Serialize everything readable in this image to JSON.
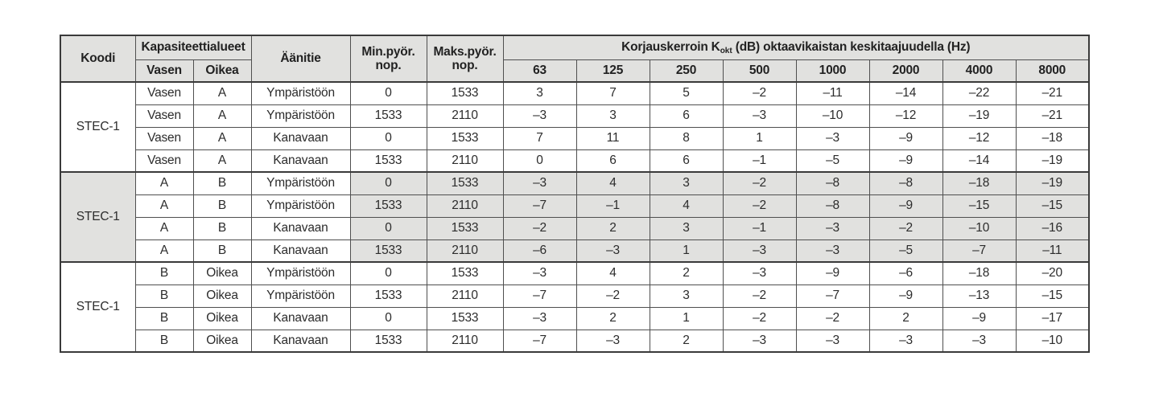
{
  "colors": {
    "header_and_shaded_row_bg": "#e1e1df",
    "grid_border": "#4f4f4f",
    "outer_border": "#3a3a3a",
    "text": "#2c2c2c",
    "page_bg": "#ffffff"
  },
  "table": {
    "header": {
      "koodi": "Koodi",
      "kapasiteettialueet": "Kapasiteettialueet",
      "vasen": "Vasen",
      "oikea": "Oikea",
      "aanitie": "Äänitie",
      "min_line1": "Min.pyör.",
      "min_line2": "nop.",
      "maks_line1": "Maks.pyör.",
      "maks_line2": "nop.",
      "korjaus_prefix": "Korjauskerroin K",
      "korjaus_sub": "okt",
      "korjaus_suffix": " (dB) oktaavikaistan keskitaajuudella (Hz)",
      "frequencies": [
        "63",
        "125",
        "250",
        "500",
        "1000",
        "2000",
        "4000",
        "8000"
      ]
    },
    "groups": [
      {
        "koodi": "STEC-1",
        "shaded": false,
        "rows": [
          {
            "vasen": "Vasen",
            "oikea": "A",
            "aanitie": "Ympäristöön",
            "min": "0",
            "maks": "1533",
            "values": [
              "3",
              "7",
              "5",
              "–2",
              "–11",
              "–14",
              "–22",
              "–21"
            ]
          },
          {
            "vasen": "Vasen",
            "oikea": "A",
            "aanitie": "Ympäristöön",
            "min": "1533",
            "maks": "2110",
            "values": [
              "–3",
              "3",
              "6",
              "–3",
              "–10",
              "–12",
              "–19",
              "–21"
            ]
          },
          {
            "vasen": "Vasen",
            "oikea": "A",
            "aanitie": "Kanavaan",
            "min": "0",
            "maks": "1533",
            "values": [
              "7",
              "11",
              "8",
              "1",
              "–3",
              "–9",
              "–12",
              "–18"
            ]
          },
          {
            "vasen": "Vasen",
            "oikea": "A",
            "aanitie": "Kanavaan",
            "min": "1533",
            "maks": "2110",
            "values": [
              "0",
              "6",
              "6",
              "–1",
              "–5",
              "–9",
              "–14",
              "–19"
            ]
          }
        ]
      },
      {
        "koodi": "STEC-1",
        "shaded": true,
        "rows": [
          {
            "vasen": "A",
            "oikea": "B",
            "aanitie": "Ympäristöön",
            "min": "0",
            "maks": "1533",
            "values": [
              "–3",
              "4",
              "3",
              "–2",
              "–8",
              "–8",
              "–18",
              "–19"
            ]
          },
          {
            "vasen": "A",
            "oikea": "B",
            "aanitie": "Ympäristöön",
            "min": "1533",
            "maks": "2110",
            "values": [
              "–7",
              "–1",
              "4",
              "–2",
              "–8",
              "–9",
              "–15",
              "–15"
            ]
          },
          {
            "vasen": "A",
            "oikea": "B",
            "aanitie": "Kanavaan",
            "min": "0",
            "maks": "1533",
            "values": [
              "–2",
              "2",
              "3",
              "–1",
              "–3",
              "–2",
              "–10",
              "–16"
            ]
          },
          {
            "vasen": "A",
            "oikea": "B",
            "aanitie": "Kanavaan",
            "min": "1533",
            "maks": "2110",
            "values": [
              "–6",
              "–3",
              "1",
              "–3",
              "–3",
              "–5",
              "–7",
              "–11"
            ]
          }
        ]
      },
      {
        "koodi": "STEC-1",
        "shaded": false,
        "rows": [
          {
            "vasen": "B",
            "oikea": "Oikea",
            "aanitie": "Ympäristöön",
            "min": "0",
            "maks": "1533",
            "values": [
              "–3",
              "4",
              "2",
              "–3",
              "–9",
              "–6",
              "–18",
              "–20"
            ]
          },
          {
            "vasen": "B",
            "oikea": "Oikea",
            "aanitie": "Ympäristöön",
            "min": "1533",
            "maks": "2110",
            "values": [
              "–7",
              "–2",
              "3",
              "–2",
              "–7",
              "–9",
              "–13",
              "–15"
            ]
          },
          {
            "vasen": "B",
            "oikea": "Oikea",
            "aanitie": "Kanavaan",
            "min": "0",
            "maks": "1533",
            "values": [
              "–3",
              "2",
              "1",
              "–2",
              "–2",
              "2",
              "–9",
              "–17"
            ]
          },
          {
            "vasen": "B",
            "oikea": "Oikea",
            "aanitie": "Kanavaan",
            "min": "1533",
            "maks": "2110",
            "values": [
              "–7",
              "–3",
              "2",
              "–3",
              "–3",
              "–3",
              "–3",
              "–10"
            ]
          }
        ]
      }
    ]
  }
}
